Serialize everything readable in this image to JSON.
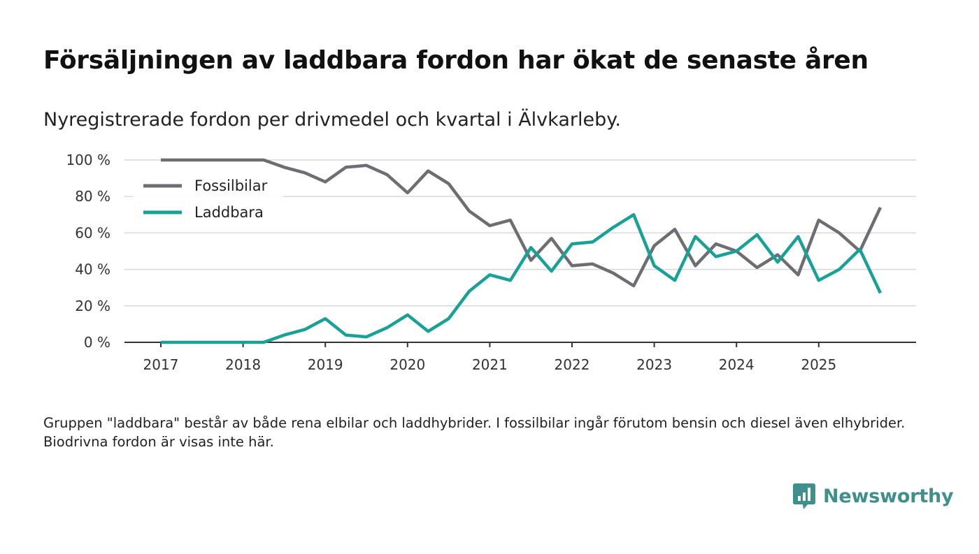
{
  "title": "Försäljningen av laddbara fordon har ökat de senaste åren",
  "subtitle": "Nyregistrerade fordon per drivmedel och kvartal i Älvkarleby.",
  "note": "Gruppen \"laddbara\" består av både rena elbilar och laddhybrider. I fossilbilar ingår förutom bensin och diesel även elhybrider. Biodrivna fordon är visas inte här.",
  "brand": {
    "name": "Newsworthy",
    "color": "#3f8f8c"
  },
  "chart_data": {
    "type": "line",
    "title": "Försäljningen av laddbara fordon har ökat de senaste åren",
    "xlabel": "",
    "ylabel": "",
    "ylim": [
      0,
      100
    ],
    "y_ticks": [
      0,
      20,
      40,
      60,
      80,
      100
    ],
    "y_tick_labels": [
      "0 %",
      "20 %",
      "40 %",
      "60 %",
      "80 %",
      "100 %"
    ],
    "x_tick_labels": [
      "2017",
      "2018",
      "2019",
      "2020",
      "2021",
      "2022",
      "2023",
      "2024",
      "2025"
    ],
    "x": [
      "2017Q1",
      "2017Q2",
      "2017Q3",
      "2017Q4",
      "2018Q1",
      "2018Q2",
      "2018Q3",
      "2018Q4",
      "2019Q1",
      "2019Q2",
      "2019Q3",
      "2019Q4",
      "2020Q1",
      "2020Q2",
      "2020Q3",
      "2020Q4",
      "2021Q1",
      "2021Q2",
      "2021Q3",
      "2021Q4",
      "2022Q1",
      "2022Q2",
      "2022Q3",
      "2022Q4",
      "2023Q1",
      "2023Q2",
      "2023Q3",
      "2023Q4",
      "2024Q1",
      "2024Q2",
      "2024Q3",
      "2024Q4",
      "2025Q1",
      "2025Q2",
      "2025Q3",
      "2025Q4"
    ],
    "grid": true,
    "legend_position": "top-left",
    "series": [
      {
        "name": "Fossilbilar",
        "color": "#6e6d73",
        "values": [
          100,
          100,
          100,
          100,
          100,
          100,
          96,
          93,
          88,
          96,
          97,
          92,
          82,
          94,
          87,
          72,
          64,
          67,
          45,
          57,
          42,
          43,
          38,
          31,
          53,
          62,
          42,
          54,
          50,
          41,
          48,
          37,
          67,
          60,
          50,
          74
        ]
      },
      {
        "name": "Laddbara",
        "color": "#17a197",
        "values": [
          0,
          0,
          0,
          0,
          0,
          0,
          4,
          7,
          13,
          4,
          3,
          8,
          15,
          6,
          13,
          28,
          37,
          34,
          52,
          39,
          54,
          55,
          63,
          70,
          42,
          34,
          58,
          47,
          50,
          59,
          44,
          58,
          34,
          40,
          51,
          27
        ]
      }
    ]
  }
}
